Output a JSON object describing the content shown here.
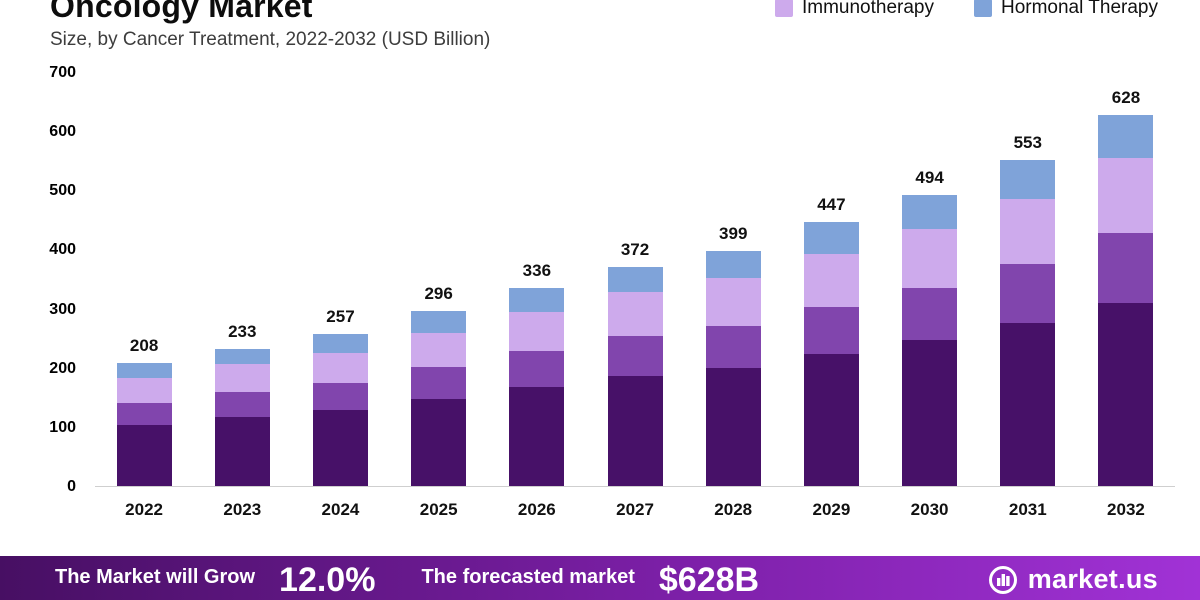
{
  "header": {
    "title": "Oncology Market",
    "subtitle": "Size, by Cancer Treatment, 2022-2032 (USD Billion)"
  },
  "legend": {
    "items": [
      {
        "label": "Immunotherapy",
        "color": "#cdaaec"
      },
      {
        "label": "Hormonal Therapy",
        "color": "#7fa3d9"
      }
    ]
  },
  "chart_data": {
    "type": "bar",
    "stacked": true,
    "title": "Oncology Market Size, by Cancer Treatment, 2022-2032 (USD Billion)",
    "xlabel": "",
    "ylabel": "",
    "ylim": [
      0,
      700
    ],
    "yticks": [
      0,
      100,
      200,
      300,
      400,
      500,
      600,
      700
    ],
    "grid": false,
    "legend_position": "top-right",
    "categories": [
      "2022",
      "2023",
      "2024",
      "2025",
      "2026",
      "2027",
      "2028",
      "2029",
      "2030",
      "2031",
      "2032"
    ],
    "totals": [
      208,
      233,
      257,
      296,
      336,
      372,
      399,
      447,
      494,
      553,
      628
    ],
    "series": [
      {
        "name": "Unlabeled (dark purple)",
        "color": "#471168",
        "values": [
          104,
          117,
          129,
          148,
          168,
          187,
          200,
          224,
          247,
          277,
          310
        ]
      },
      {
        "name": "Unlabeled (medium purple)",
        "color": "#8145ad",
        "values": [
          37,
          42,
          46,
          53,
          60,
          67,
          72,
          80,
          89,
          100,
          118
        ]
      },
      {
        "name": "Immunotherapy",
        "color": "#cdaaec",
        "values": [
          42,
          47,
          51,
          59,
          67,
          74,
          80,
          89,
          99,
          110,
          128
        ]
      },
      {
        "name": "Hormonal Therapy",
        "color": "#7fa3d9",
        "values": [
          25,
          27,
          31,
          36,
          41,
          44,
          47,
          54,
          59,
          66,
          72
        ]
      }
    ]
  },
  "footer": {
    "stat1_label": "The Market will Grow",
    "stat1_value": "12.0%",
    "stat2_label": "The forecasted market",
    "stat2_value": "$628B",
    "brand": "market.us"
  }
}
